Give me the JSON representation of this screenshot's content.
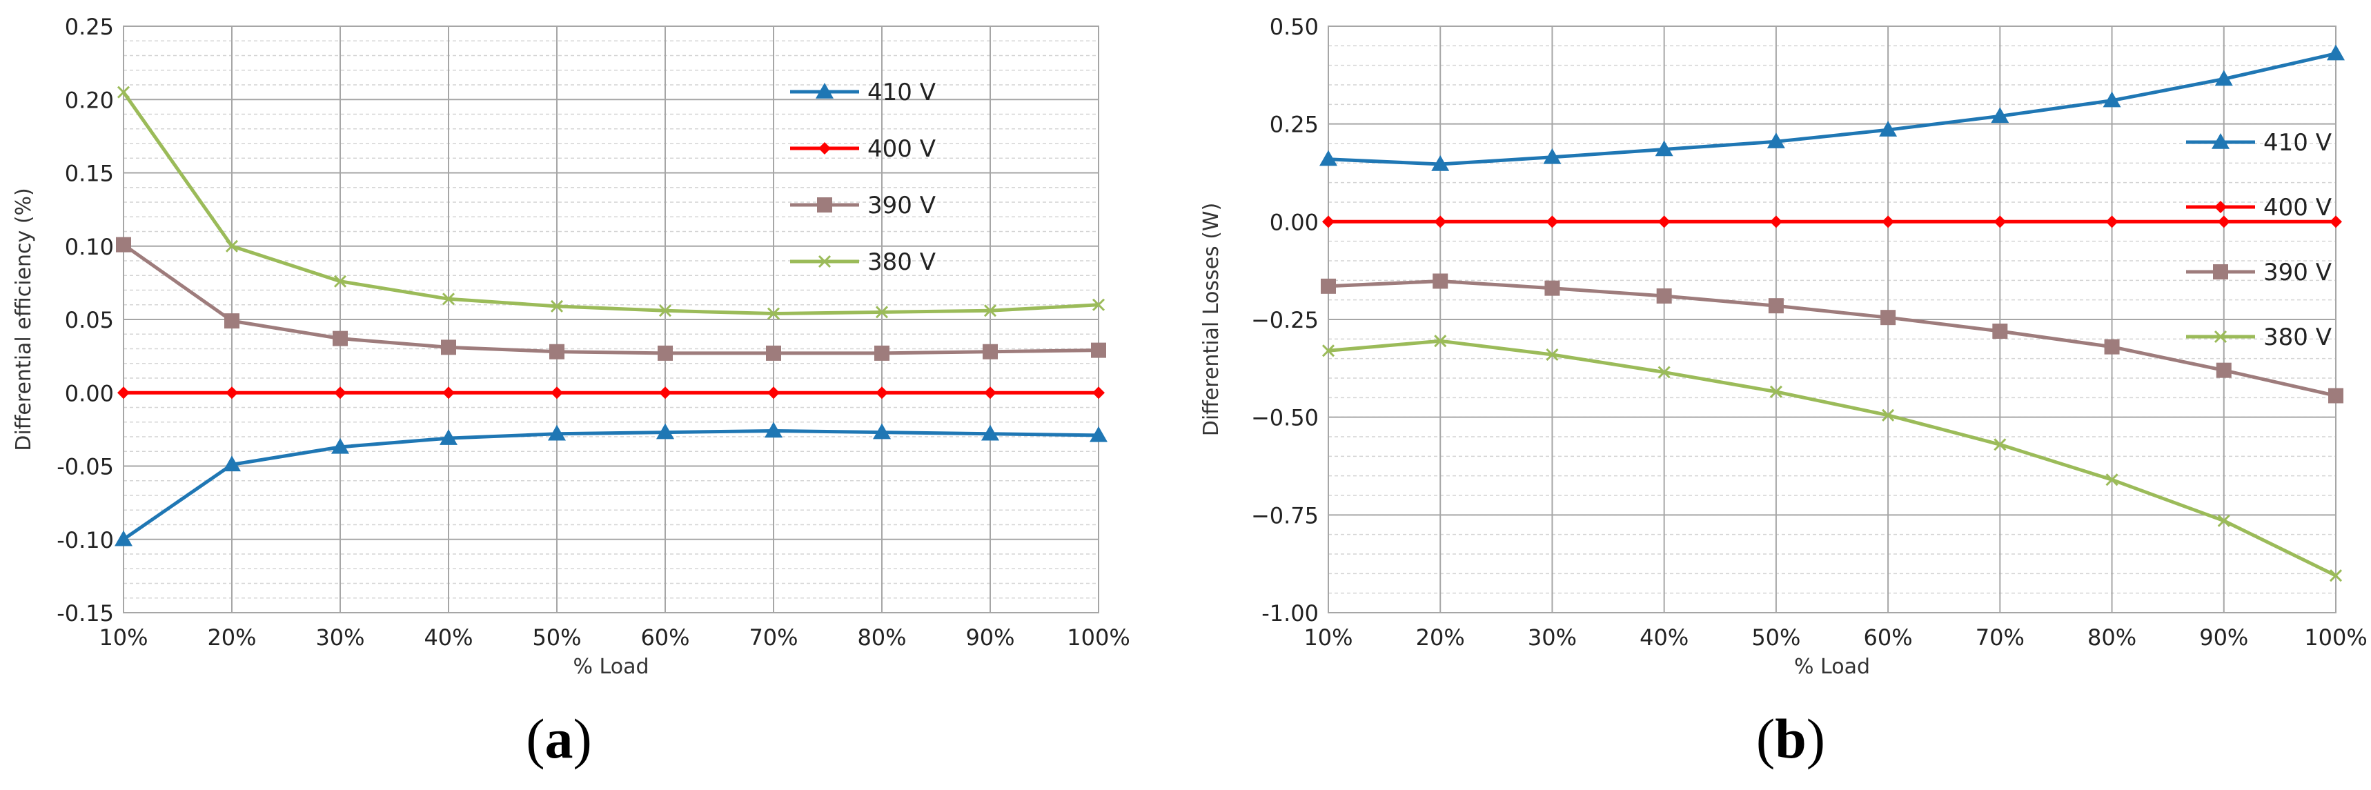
{
  "panels": [
    {
      "label_open": "(",
      "label_letter": "a",
      "label_close": ")"
    },
    {
      "label_open": "(",
      "label_letter": "b",
      "label_close": ")"
    }
  ],
  "chart_data": [
    {
      "type": "line",
      "title": "",
      "xlabel": "% Load",
      "ylabel": "Differential efficiency (%)",
      "categories": [
        "10%",
        "20%",
        "30%",
        "40%",
        "50%",
        "60%",
        "70%",
        "80%",
        "90%",
        "100%"
      ],
      "ylim": [
        -0.15,
        0.25
      ],
      "y_major_step": 0.05,
      "y_minor_step": 0.01,
      "y_tick_labels": [
        "-0.15",
        "-0.10",
        "-0.05",
        "0.00",
        "0.05",
        "0.10",
        "0.15",
        "0.20",
        "0.25"
      ],
      "grid": true,
      "legend_position": "top-right",
      "series": [
        {
          "name": "410 V",
          "color": "#1f77b4",
          "marker": "triangle",
          "values": [
            -0.1,
            -0.049,
            -0.037,
            -0.031,
            -0.028,
            -0.027,
            -0.026,
            -0.027,
            -0.028,
            -0.029
          ]
        },
        {
          "name": "400 V",
          "color": "#ff0000",
          "marker": "diamond",
          "values": [
            0,
            0,
            0,
            0,
            0,
            0,
            0,
            0,
            0,
            0
          ]
        },
        {
          "name": "390 V",
          "color": "#9e7c7c",
          "marker": "square",
          "values": [
            0.101,
            0.049,
            0.037,
            0.031,
            0.028,
            0.027,
            0.027,
            0.027,
            0.028,
            0.029
          ]
        },
        {
          "name": "380 V",
          "color": "#9bbb59",
          "marker": "x",
          "values": [
            0.205,
            0.1,
            0.076,
            0.064,
            0.059,
            0.056,
            0.054,
            0.055,
            0.056,
            0.06
          ]
        }
      ]
    },
    {
      "type": "line",
      "title": "",
      "xlabel": "% Load",
      "ylabel": "Differential Losses (W)",
      "categories": [
        "10%",
        "20%",
        "30%",
        "40%",
        "50%",
        "60%",
        "70%",
        "80%",
        "90%",
        "100%"
      ],
      "ylim": [
        -1.0,
        0.5
      ],
      "y_major_step": 0.25,
      "y_minor_step": 0.05,
      "y_tick_labels": [
        "-1.00",
        "−0.75",
        "−0.50",
        "−0.25",
        "0.00",
        "0.25",
        "0.50"
      ],
      "grid": true,
      "legend_position": "right",
      "series": [
        {
          "name": "410 V",
          "color": "#1f77b4",
          "marker": "triangle",
          "values": [
            0.16,
            0.147,
            0.165,
            0.185,
            0.205,
            0.235,
            0.27,
            0.31,
            0.365,
            0.43
          ]
        },
        {
          "name": "400 V",
          "color": "#ff0000",
          "marker": "diamond",
          "values": [
            0,
            0,
            0,
            0,
            0,
            0,
            0,
            0,
            0,
            0
          ]
        },
        {
          "name": "390 V",
          "color": "#9e7c7c",
          "marker": "square",
          "values": [
            -0.165,
            -0.152,
            -0.17,
            -0.19,
            -0.215,
            -0.245,
            -0.28,
            -0.32,
            -0.38,
            -0.445
          ]
        },
        {
          "name": "380 V",
          "color": "#9bbb59",
          "marker": "x",
          "values": [
            -0.33,
            -0.305,
            -0.34,
            -0.385,
            -0.435,
            -0.495,
            -0.57,
            -0.66,
            -0.765,
            -0.905
          ]
        }
      ]
    }
  ]
}
